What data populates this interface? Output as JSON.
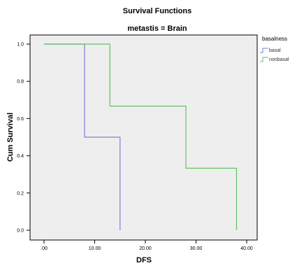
{
  "chart_data": {
    "type": "line",
    "title": "Survival Functions",
    "subtitle": "metastis = Brain",
    "xlabel": "DFS",
    "ylabel": "Cum Survival",
    "xlim": [
      0,
      40
    ],
    "ylim": [
      0,
      1
    ],
    "x_ticks": [
      0,
      10,
      20,
      30,
      40
    ],
    "x_tick_labels": [
      ".00",
      "10.00",
      "20.00",
      "30.00",
      "40.00"
    ],
    "y_ticks": [
      0,
      0.2,
      0.4,
      0.6,
      0.8,
      1.0
    ],
    "y_tick_labels": [
      "0.0",
      "0.2",
      "0.4",
      "0.6",
      "0.8",
      "1.0"
    ],
    "grid": false,
    "legend": {
      "title": "basalness",
      "position": "right"
    },
    "series": [
      {
        "name": "basal",
        "color": "#7f7fd4",
        "step": "post",
        "x": [
          0,
          8,
          8,
          15,
          15
        ],
        "y": [
          1.0,
          1.0,
          0.5,
          0.5,
          0.0
        ]
      },
      {
        "name": "nonbasal",
        "color": "#62c262",
        "step": "post",
        "x": [
          0,
          13,
          13,
          28,
          28,
          38,
          38
        ],
        "y": [
          1.0,
          1.0,
          0.667,
          0.667,
          0.333,
          0.333,
          0.0
        ]
      }
    ]
  },
  "colors": {
    "plot_background": "#eeeeee",
    "axis": "#000000"
  }
}
